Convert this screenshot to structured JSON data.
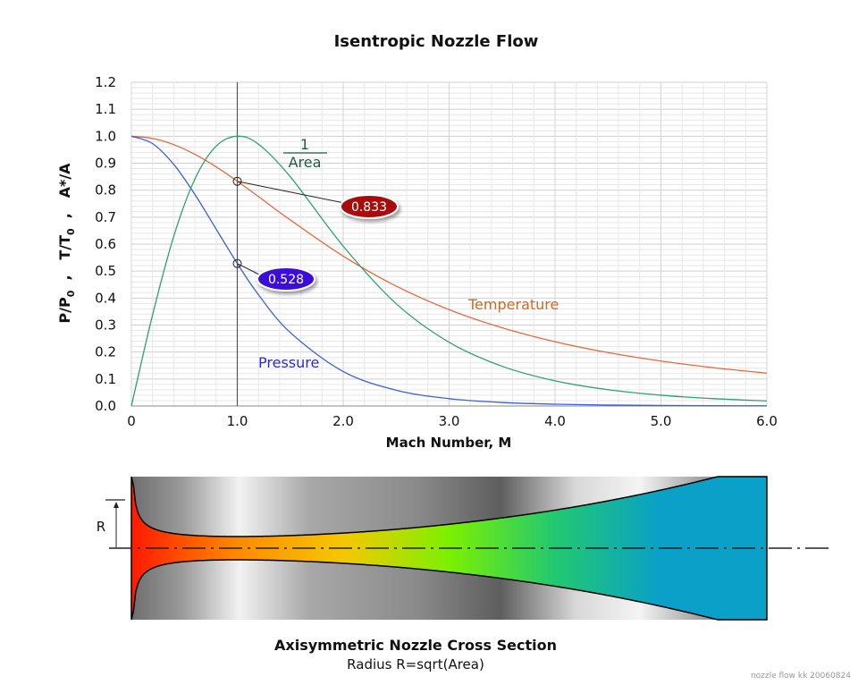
{
  "chart_data": {
    "type": "line",
    "title": "Isentropic Nozzle Flow",
    "xlabel": "Mach Number, M",
    "ylabel_parts": [
      "P/P",
      "0",
      "  ,   T/T",
      "0",
      "  ,   A*/A"
    ],
    "xlim": [
      0,
      6
    ],
    "ylim": [
      0,
      1.2
    ],
    "x_ticks": [
      "0",
      "1.0",
      "2.0",
      "3.0",
      "4.0",
      "5.0",
      "6.0"
    ],
    "y_ticks": [
      "0.0",
      "0.1",
      "0.2",
      "0.3",
      "0.4",
      "0.5",
      "0.6",
      "0.7",
      "0.8",
      "0.9",
      "1.0",
      "1.1",
      "1.2"
    ],
    "grid": true,
    "x": [
      0,
      0.2,
      0.4,
      0.6,
      0.8,
      1.0,
      1.2,
      1.5,
      2.0,
      2.5,
      3.0,
      3.5,
      4.0,
      4.5,
      5.0,
      5.5,
      6.0
    ],
    "series": [
      {
        "name": "Temperature",
        "color": "#e8673a",
        "label_color": "#d2691e",
        "values": [
          1,
          0.9921,
          0.969,
          0.9328,
          0.8865,
          0.8333,
          0.7764,
          0.6897,
          0.5556,
          0.4444,
          0.3571,
          0.2899,
          0.2381,
          0.198,
          0.1667,
          0.1418,
          0.122
        ]
      },
      {
        "name": "Pressure",
        "color": "#3a5fe0",
        "label_color": "#2a2ad0",
        "values": [
          1,
          0.9725,
          0.8956,
          0.784,
          0.656,
          0.5283,
          0.4124,
          0.2724,
          0.1278,
          0.0585,
          0.0272,
          0.0131,
          0.0066,
          0.0035,
          0.0019,
          0.0011,
          0.0006
        ]
      },
      {
        "name_parts": [
          "1",
          "Area"
        ],
        "color": "#2fa070",
        "label_color": "#1e5c46",
        "values": [
          0,
          0.3374,
          0.6289,
          0.8416,
          0.9632,
          1.0,
          0.9705,
          0.8502,
          0.5926,
          0.3793,
          0.2362,
          0.1473,
          0.0933,
          0.0604,
          0.04,
          0.0271,
          0.0188
        ]
      }
    ],
    "marker_line_x": 1.0,
    "annotations": [
      {
        "x": 1.0,
        "y": 0.833,
        "text": "0.833",
        "color": "#a80c0c"
      },
      {
        "x": 1.0,
        "y": 0.528,
        "text": "0.528",
        "color": "#3a10d8"
      }
    ]
  },
  "nozzle": {
    "title": "Axisymmetric Nozzle Cross Section",
    "subtitle": "Radius R=sqrt(Area)",
    "radius_label": "R",
    "flow_colors": [
      "#ff1a00",
      "#ff8a00",
      "#f5c800",
      "#7cf000",
      "#22c870",
      "#0aa0c8",
      "#0aa0c8"
    ]
  },
  "watermark": "nozzle flow kk 20060824"
}
